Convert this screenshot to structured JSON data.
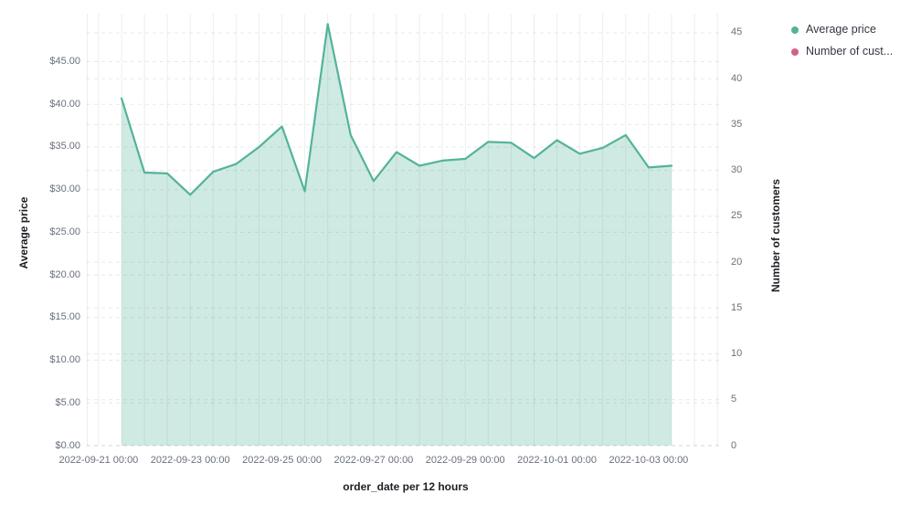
{
  "chart_data": {
    "type": "area",
    "x_axis": {
      "title": "order_date per 12 hours",
      "tick_labels": [
        "2022-09-21 00:00",
        "2022-09-23 00:00",
        "2022-09-25 00:00",
        "2022-09-27 00:00",
        "2022-09-29 00:00",
        "2022-10-01 00:00",
        "2022-10-03 00:00"
      ]
    },
    "y_axis_left": {
      "title": "Average price",
      "tick_values": [
        0,
        5,
        10,
        15,
        20,
        25,
        30,
        35,
        40,
        45
      ],
      "tick_labels": [
        "$0.00",
        "$5.00",
        "$10.00",
        "$15.00",
        "$20.00",
        "$25.00",
        "$30.00",
        "$35.00",
        "$40.00",
        "$45.00"
      ],
      "range": [
        0,
        50.6
      ]
    },
    "y_axis_right": {
      "title": "Number of customers",
      "tick_values": [
        0,
        5,
        10,
        15,
        20,
        25,
        30,
        35,
        40,
        45
      ],
      "tick_labels": [
        "0",
        "5",
        "10",
        "15",
        "20",
        "25",
        "30",
        "35",
        "40",
        "45"
      ],
      "range": [
        0,
        47.1
      ]
    },
    "legend": [
      {
        "label": "Average price",
        "color": "#54B399"
      },
      {
        "label": "Number of cust...",
        "color": "#D36086"
      }
    ],
    "grid": {
      "horizontal": "dashed",
      "vertical": "solid",
      "legend_position": "top-right"
    },
    "series": [
      {
        "name": "Average price",
        "color": "#54B399",
        "style": "area",
        "x": [
          "2022-09-21 12:00",
          "2022-09-22 00:00",
          "2022-09-22 12:00",
          "2022-09-23 00:00",
          "2022-09-23 12:00",
          "2022-09-24 00:00",
          "2022-09-24 12:00",
          "2022-09-25 00:00",
          "2022-09-25 12:00",
          "2022-09-26 00:00",
          "2022-09-26 12:00",
          "2022-09-27 00:00",
          "2022-09-27 12:00",
          "2022-09-28 00:00",
          "2022-09-28 12:00",
          "2022-09-29 00:00",
          "2022-09-29 12:00",
          "2022-09-30 00:00",
          "2022-09-30 12:00",
          "2022-10-01 00:00",
          "2022-10-01 12:00",
          "2022-10-02 00:00",
          "2022-10-02 12:00",
          "2022-10-03 00:00",
          "2022-10-03 12:00"
        ],
        "values": [
          40.7,
          32.0,
          31.9,
          29.4,
          32.1,
          33.0,
          35.0,
          37.4,
          29.8,
          49.4,
          36.4,
          31.0,
          34.4,
          32.8,
          33.4,
          33.6,
          35.6,
          35.5,
          33.7,
          35.8,
          34.2,
          34.9,
          36.4,
          32.6,
          32.8
        ]
      },
      {
        "name": "Number of customers",
        "color": "#D36086",
        "style": "line",
        "values": []
      }
    ]
  },
  "colors": {
    "background": "#ffffff",
    "series_green": "#54B399",
    "series_pink": "#D36086",
    "tick_text": "#69707d",
    "title_text": "#1d1e24",
    "legend_text": "#343741"
  }
}
